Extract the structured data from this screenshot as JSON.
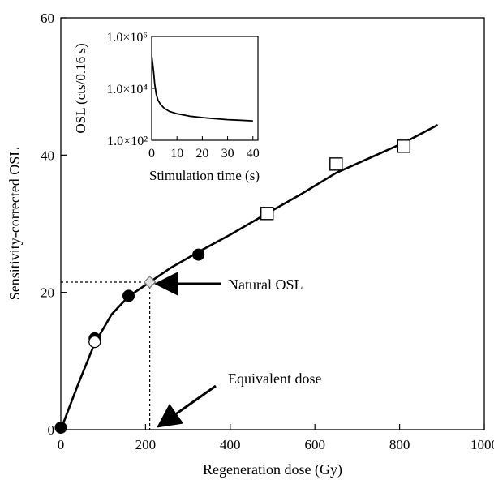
{
  "chart_data": [
    {
      "type": "scatter",
      "xlabel": "Regeneration dose (Gy)",
      "ylabel": "Sensitivity-corrected OSL",
      "xlim": [
        0,
        1000
      ],
      "ylim": [
        0,
        60
      ],
      "x_ticks": [
        "0",
        "200",
        "400",
        "600",
        "800",
        "1000"
      ],
      "y_ticks": [
        "0",
        "20",
        "40",
        "60"
      ],
      "grid": false,
      "legend": "none",
      "series": [
        {
          "marker": "filled-circle",
          "points": [
            [
              0,
              0.3
            ],
            [
              80,
              13.3
            ],
            [
              160,
              19.5
            ],
            [
              325,
              25.5
            ]
          ]
        },
        {
          "marker": "open-circle",
          "points": [
            [
              80,
              12.8
            ]
          ]
        },
        {
          "marker": "open-square",
          "points": [
            [
              487,
              31.5
            ],
            [
              650,
              38.7
            ],
            [
              810,
              41.3
            ]
          ]
        },
        {
          "marker": "open-diamond",
          "points": [
            [
              210,
              21.5
            ]
          ]
        },
        {
          "marker": "line",
          "points": [
            [
              0,
              0
            ],
            [
              40,
              6.5
            ],
            [
              80,
              12.6
            ],
            [
              120,
              16.8
            ],
            [
              160,
              19.4
            ],
            [
              210,
              21.5
            ],
            [
              260,
              23.6
            ],
            [
              325,
              25.9
            ],
            [
              400,
              28.4
            ],
            [
              487,
              31.5
            ],
            [
              570,
              34.4
            ],
            [
              650,
              37.4
            ],
            [
              730,
              39.6
            ],
            [
              810,
              41.8
            ],
            [
              890,
              44.4
            ]
          ]
        }
      ],
      "annotations": [
        {
          "text": "Natural OSL",
          "target": [
            210,
            21.5
          ]
        },
        {
          "text": "Equivalent dose",
          "target": [
            210,
            0
          ]
        }
      ],
      "dotted_guides": {
        "x": 210,
        "y": 21.5
      }
    },
    {
      "type": "line",
      "xlabel": "Stimulation time (s)",
      "ylabel": "OSL (cts/0.16 s)",
      "xlim": [
        0,
        42
      ],
      "ylim": [
        100,
        1000000
      ],
      "y_scale": "log",
      "x_ticks": [
        "0",
        "10",
        "20",
        "30",
        "40"
      ],
      "y_ticks": [
        "1.0×10⁶",
        "1.0×10⁴",
        "1.0×10²"
      ],
      "series": [
        {
          "points": [
            [
              0.1,
              160000
            ],
            [
              0.4,
              90000
            ],
            [
              0.8,
              40000
            ],
            [
              1.2,
              15000
            ],
            [
              1.8,
              6000
            ],
            [
              2.5,
              3500
            ],
            [
              3.5,
              2400
            ],
            [
              5,
              1700
            ],
            [
              7,
              1300
            ],
            [
              10,
              1050
            ],
            [
              15,
              850
            ],
            [
              20,
              750
            ],
            [
              25,
              680
            ],
            [
              30,
              620
            ],
            [
              35,
              590
            ],
            [
              40,
              560
            ]
          ]
        }
      ]
    }
  ]
}
